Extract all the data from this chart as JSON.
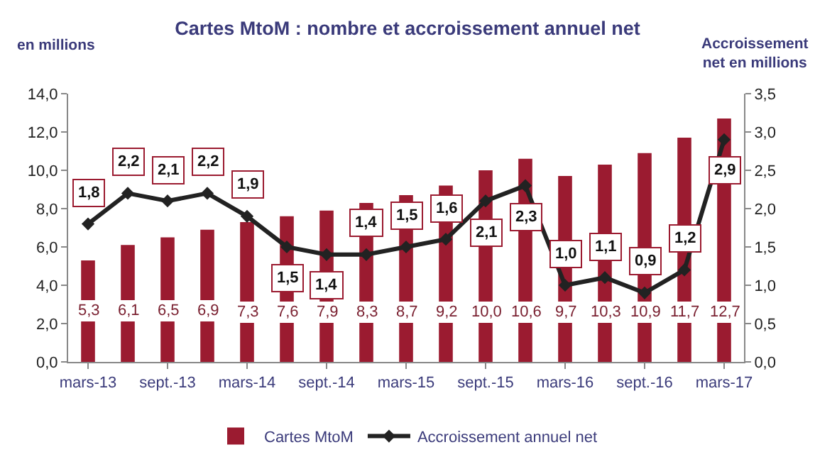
{
  "chart_data": {
    "type": "bar",
    "title": "Cartes MtoM : nombre et accroissement annuel net",
    "ylabel": "en millions",
    "y2label": "Accroissement net en millions",
    "categories": [
      "mars-13",
      null,
      "sept.-13",
      null,
      "mars-14",
      null,
      "sept.-14",
      null,
      "mars-15",
      null,
      "sept.-15",
      null,
      "mars-16",
      null,
      "sept.-16",
      null,
      "mars-17"
    ],
    "series": [
      {
        "name": "Cartes MtoM",
        "color": "#9b1b30",
        "values": [
          5.3,
          6.1,
          6.5,
          6.9,
          7.3,
          7.6,
          7.9,
          8.3,
          8.7,
          9.2,
          10.0,
          10.6,
          9.7,
          10.3,
          10.9,
          11.7,
          12.7
        ],
        "value_labels": [
          "5,3",
          "6,1",
          "6,5",
          "6,9",
          "7,3",
          "7,6",
          "7,9",
          "8,3",
          "8,7",
          "9,2",
          "10,0",
          "10,6",
          "9,7",
          "10,3",
          "10,9",
          "11,7",
          "12,7"
        ]
      },
      {
        "name": "Accroissement annuel net",
        "type": "line",
        "axis": "y2",
        "color": "#222222",
        "marker": "diamond",
        "values": [
          1.8,
          2.2,
          2.1,
          2.2,
          1.9,
          1.5,
          1.4,
          1.4,
          1.5,
          1.6,
          2.1,
          2.3,
          1.0,
          1.1,
          0.9,
          1.2,
          2.9
        ],
        "value_labels": [
          "1,8",
          "2,2",
          "2,1",
          "2,2",
          "1,9",
          "1,5",
          "1,4",
          "1,4",
          "1,5",
          "1,6",
          "2,1",
          "2,3",
          "1,0",
          "1,1",
          "0,9",
          "1,2",
          "2,9"
        ]
      }
    ],
    "ylim": [
      0,
      14
    ],
    "yticks": [
      {
        "value": 0,
        "label": "0,0"
      },
      {
        "value": 2,
        "label": "2,0"
      },
      {
        "value": 4,
        "label": "4,0"
      },
      {
        "value": 6,
        "label": "6,0"
      },
      {
        "value": 8,
        "label": "8,0"
      },
      {
        "value": 10,
        "label": "10,0"
      },
      {
        "value": 12,
        "label": "12,0"
      },
      {
        "value": 14,
        "label": "14,0"
      }
    ],
    "y2lim": [
      0,
      3.5
    ],
    "y2ticks": [
      {
        "value": 0,
        "label": "0,0"
      },
      {
        "value": 0.5,
        "label": "0,5"
      },
      {
        "value": 1,
        "label": "1,0"
      },
      {
        "value": 1.5,
        "label": "1,5"
      },
      {
        "value": 2,
        "label": "2,0"
      },
      {
        "value": 2.5,
        "label": "2,5"
      },
      {
        "value": 3,
        "label": "3,0"
      },
      {
        "value": 3.5,
        "label": "3,5"
      }
    ],
    "grid": false,
    "legend": "bottom"
  }
}
